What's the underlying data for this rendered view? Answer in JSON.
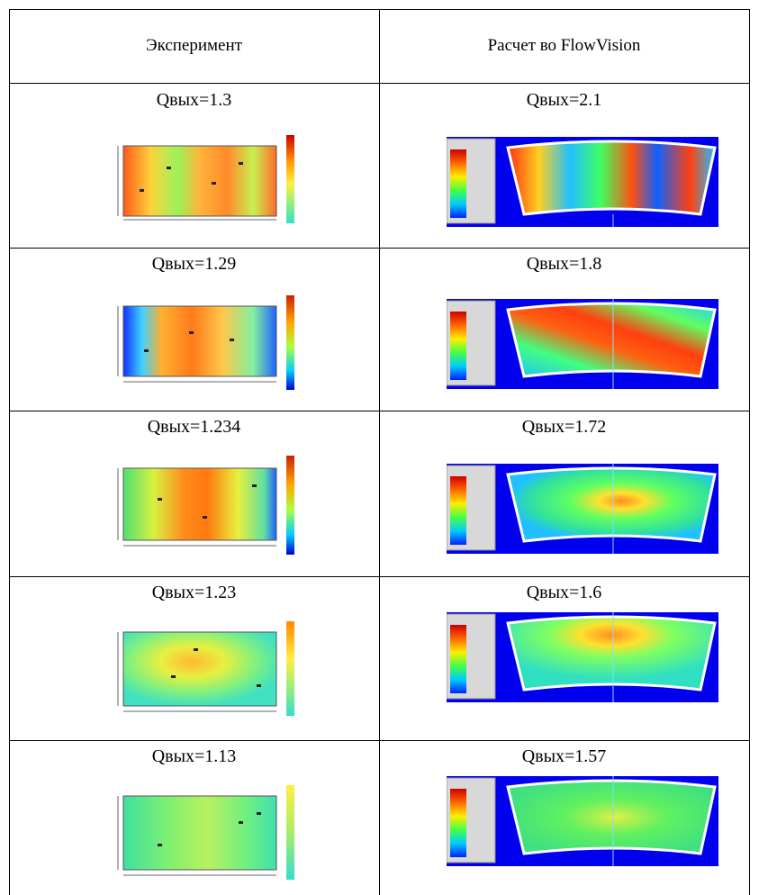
{
  "table": {
    "headers": [
      "Эксперимент",
      "Расчет  во FlowVision"
    ],
    "rows": [
      {
        "exp_label": "Qвых=1.3",
        "fv_label": "Qвых=2.1"
      },
      {
        "exp_label": "Qвых=1.29",
        "fv_label": "Qвых=1.8"
      },
      {
        "exp_label": "Qвых=1.234",
        "fv_label": "Qвых=1.72"
      },
      {
        "exp_label": "Qвых=1.23",
        "fv_label": "Qвых=1.6"
      },
      {
        "exp_label": "Qвых=1.13",
        "fv_label": "Qвых=1.57"
      }
    ]
  },
  "colors": {
    "grid": "#000000",
    "fv_background": "#0000ee",
    "scale": [
      "#cc0000",
      "#ff3300",
      "#ff9900",
      "#ffdd00",
      "#99ff33",
      "#33ff66",
      "#00ffcc",
      "#0099ff",
      "#0033ff"
    ]
  }
}
